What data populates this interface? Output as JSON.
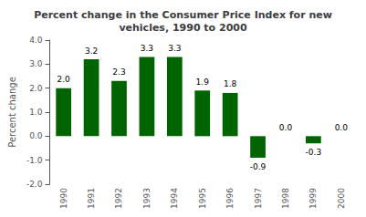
{
  "chart_data": {
    "type": "bar",
    "title": "Percent change in the Consumer Price Index for new\nvehicles, 1990 to 2000",
    "ylabel": "Percent change",
    "categories": [
      "1990",
      "1991",
      "1992",
      "1993",
      "1994",
      "1995",
      "1996",
      "1997",
      "1998",
      "1999",
      "2000"
    ],
    "values": [
      2.0,
      3.2,
      2.3,
      3.3,
      3.3,
      1.9,
      1.8,
      -0.9,
      0.0,
      -0.3,
      0.0
    ],
    "value_labels": [
      "2.0",
      "3.2",
      "2.3",
      "3.3",
      "3.3",
      "1.9",
      "1.8",
      "-0.9",
      "0.0",
      "-0.3",
      "0.0"
    ],
    "data_labels": true,
    "color": "#006400",
    "ylim": [
      -2.0,
      4.0
    ],
    "yticks": [
      {
        "value": -2.0,
        "label": "-2.0"
      },
      {
        "value": -1.0,
        "label": "-1.0"
      },
      {
        "value": 0.0,
        "label": "0.0"
      },
      {
        "value": 1.0,
        "label": "1.0"
      },
      {
        "value": 2.0,
        "label": "2.0"
      },
      {
        "value": 3.0,
        "label": "3.0"
      },
      {
        "value": 4.0,
        "label": "4.0"
      }
    ],
    "grid": false
  }
}
